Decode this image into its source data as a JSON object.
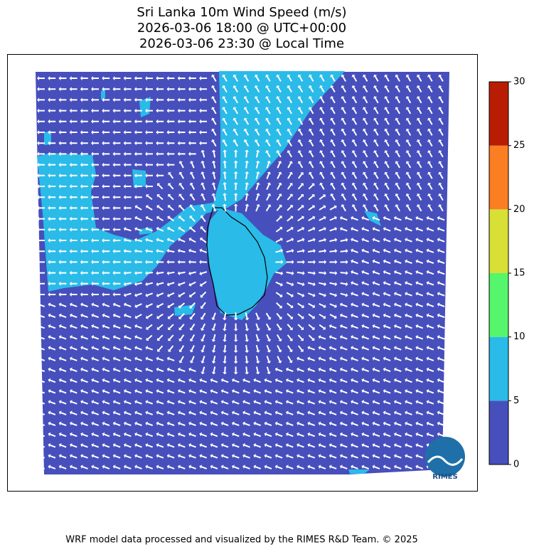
{
  "title": [
    "Sri Lanka 10m Wind Speed (m/s)",
    "2026-03-06 18:00 @ UTC+00:00",
    "2026-03-06 23:30 @ Local Time"
  ],
  "colorbar": {
    "lim": [
      0,
      30
    ],
    "ticks": [
      0,
      5,
      10,
      15,
      20,
      25,
      30
    ],
    "colors": [
      "#464fbb",
      "#2abbe8",
      "#55f66c",
      "#d8e035",
      "#fb7e23",
      "#b81d04"
    ]
  },
  "logo": "RIMES",
  "footer": "WRF model data processed and visualized by the RIMES R&D Team. © 2025"
}
